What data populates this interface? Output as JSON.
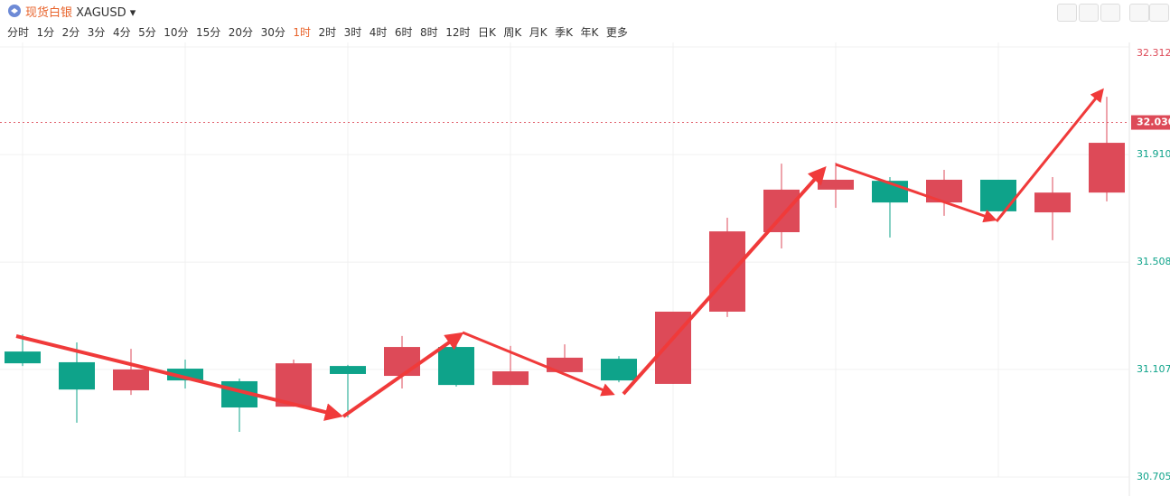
{
  "header": {
    "symbol_name": "现货白银",
    "symbol": "XAGUSD",
    "periods": [
      "分时",
      "1分",
      "2分",
      "3分",
      "4分",
      "5分",
      "10分",
      "15分",
      "20分",
      "30分",
      "1时",
      "2时",
      "3时",
      "4时",
      "6时",
      "8时",
      "12时",
      "日K",
      "周K",
      "月K",
      "季K",
      "年K",
      "更多"
    ],
    "active_period": "1时"
  },
  "chart_data": {
    "type": "candlestick",
    "categories": [
      null,
      null,
      null,
      null,
      null,
      null,
      null,
      null,
      null,
      null,
      null,
      null,
      null,
      null,
      null,
      null,
      null,
      null,
      null,
      null,
      null
    ],
    "open": [
      31.174,
      31.134,
      31.029,
      31.11,
      31.063,
      30.968,
      31.12,
      31.083,
      31.191,
      31.049,
      31.097,
      31.147,
      31.053,
      31.323,
      31.62,
      31.779,
      31.812,
      31.731,
      31.816,
      31.694,
      31.768
    ],
    "high": [
      31.238,
      31.208,
      31.184,
      31.144,
      31.073,
      31.144,
      31.124,
      31.232,
      31.198,
      31.195,
      31.201,
      31.157,
      31.323,
      31.674,
      31.876,
      31.88,
      31.826,
      31.853,
      31.816,
      31.826,
      32.126
    ],
    "low": [
      31.12,
      30.908,
      31.012,
      31.036,
      30.874,
      30.968,
      30.928,
      31.036,
      31.043,
      31.049,
      31.097,
      31.059,
      31.053,
      31.303,
      31.559,
      31.711,
      31.6,
      31.681,
      31.698,
      31.59,
      31.735
    ],
    "close": [
      31.13,
      31.032,
      31.107,
      31.066,
      30.965,
      31.13,
      31.09,
      31.191,
      31.049,
      31.1,
      31.151,
      31.066,
      31.323,
      31.623,
      31.779,
      31.816,
      31.731,
      31.816,
      31.698,
      31.768,
      31.954
    ],
    "up_color": "#dd4a58",
    "down_color": "#0ea38a",
    "ylim": [
      30.705,
      32.329
    ],
    "yticks": [
      30.705,
      31.107,
      31.508,
      {
        "value": 31.91,
        "label": "31.910"
      },
      32.312
    ],
    "current_price": {
      "value": 32.03,
      "label": "32.030"
    },
    "grid": true
  }
}
